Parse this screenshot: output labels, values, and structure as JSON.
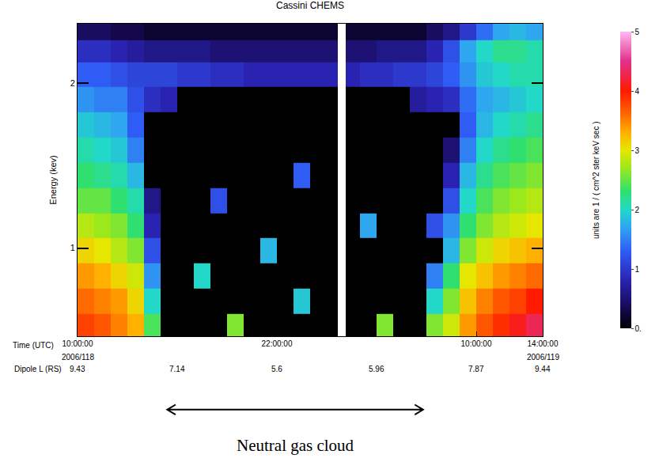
{
  "chart_data": {
    "type": "heatmap",
    "title": "Cassini CHEMS",
    "x_label": "Time (UTC)",
    "y_label": "Energy (kev)",
    "x": [
      10.5,
      11.5,
      12.5,
      13.5,
      14.5,
      15.5,
      16.5,
      17.5,
      18.5,
      19.5,
      20.5,
      21.5,
      22.5,
      23.5,
      24.5,
      25.5,
      25.8,
      26.5,
      27.5,
      28.5,
      29.5,
      30.5,
      31.5,
      32.5,
      33.5,
      34.5,
      35.5,
      36.5,
      37.5
    ],
    "y": [
      0.72,
      0.8,
      0.89,
      0.99,
      1.1,
      1.22,
      1.36,
      1.51,
      1.68,
      1.87,
      2.08,
      2.3,
      2.5
    ],
    "cells": [
      [
        3.8,
        3.7,
        3.5,
        3.3,
        2.4,
        0,
        0,
        0,
        0,
        2.6,
        0,
        0,
        0,
        0,
        0,
        0,
        null,
        0,
        0,
        2.6,
        0,
        0,
        2.6,
        2.9,
        3.4,
        3.7,
        3.9,
        4.1,
        4.3
      ],
      [
        3.6,
        3.5,
        3.4,
        3.1,
        2.0,
        0,
        0,
        0,
        0,
        0,
        0,
        0,
        0,
        1.9,
        0,
        0,
        null,
        0,
        0,
        0,
        0,
        0,
        2.0,
        2.6,
        3.2,
        3.5,
        3.7,
        3.8,
        4.0
      ],
      [
        3.4,
        3.3,
        3.1,
        2.9,
        1.6,
        0,
        0,
        2.0,
        0,
        0,
        0,
        0,
        0,
        0,
        0,
        0,
        null,
        0,
        0,
        0,
        0,
        0,
        1.5,
        2.3,
        3.0,
        3.2,
        3.4,
        3.5,
        3.6
      ],
      [
        3.1,
        3.0,
        2.8,
        2.6,
        1.2,
        0,
        0,
        0,
        0,
        0,
        0,
        1.8,
        0,
        0,
        0,
        0,
        null,
        0,
        0,
        0,
        0,
        0,
        0,
        1.8,
        2.6,
        2.9,
        3.1,
        3.2,
        3.3
      ],
      [
        2.8,
        2.7,
        2.6,
        2.3,
        0.8,
        0,
        0,
        0,
        0,
        0,
        0,
        0,
        0,
        0,
        0,
        0,
        null,
        0,
        1.7,
        0,
        0,
        0,
        1.2,
        1.6,
        2.3,
        2.6,
        2.8,
        2.9,
        3.0
      ],
      [
        2.5,
        2.5,
        2.3,
        2.1,
        0.6,
        0,
        0,
        0,
        1.2,
        0,
        0,
        0,
        0,
        0,
        0,
        0,
        null,
        0,
        0,
        0,
        0,
        0,
        0,
        1.2,
        2.0,
        2.4,
        2.6,
        2.7,
        2.8
      ],
      [
        2.3,
        2.2,
        2.1,
        1.8,
        0,
        0,
        0,
        0,
        0,
        0,
        0,
        0,
        0,
        1.3,
        0,
        0,
        null,
        0,
        0,
        0,
        0,
        0,
        0,
        0.8,
        1.8,
        2.2,
        2.4,
        2.5,
        2.6
      ],
      [
        2.1,
        2.0,
        1.9,
        1.5,
        0,
        0,
        0,
        0,
        0,
        0,
        0,
        0,
        0,
        0,
        0,
        0,
        null,
        0,
        0,
        0,
        0,
        0,
        0,
        0.5,
        1.5,
        2.0,
        2.2,
        2.3,
        2.4
      ],
      [
        1.9,
        1.8,
        1.7,
        1.3,
        0,
        0,
        0,
        0,
        0,
        0,
        0,
        0,
        0,
        0,
        0,
        0,
        null,
        0,
        0,
        0,
        0,
        0,
        0,
        0,
        1.3,
        1.8,
        2.0,
        2.1,
        2.2
      ],
      [
        1.6,
        1.5,
        1.5,
        1.2,
        0.9,
        0.8,
        0,
        0,
        0,
        0,
        0,
        0,
        0,
        0,
        0,
        0,
        null,
        0,
        0,
        0,
        0,
        0.7,
        0.8,
        0.9,
        1.4,
        1.7,
        1.8,
        1.9,
        2.0
      ],
      [
        1.3,
        1.3,
        1.2,
        1.1,
        1.1,
        1.1,
        1.0,
        1.0,
        0.9,
        0.9,
        0.8,
        0.8,
        0.8,
        0.8,
        0.8,
        0.8,
        null,
        0.8,
        0.9,
        0.9,
        1.0,
        1.0,
        1.1,
        1.3,
        1.6,
        1.9,
        2.0,
        2.1,
        2.1
      ],
      [
        0.9,
        0.9,
        0.8,
        0.7,
        0.6,
        0.6,
        0.6,
        0.6,
        0.5,
        0.5,
        0.5,
        0.5,
        0.5,
        0.5,
        0.5,
        0.5,
        null,
        0.5,
        0.5,
        0.6,
        0.6,
        0.6,
        0.8,
        1.2,
        1.7,
        2.0,
        2.2,
        2.2,
        2.1
      ],
      [
        0.4,
        0.4,
        0.3,
        0.3,
        0.2,
        0.2,
        0.2,
        0.2,
        0.2,
        0.2,
        0.2,
        0.2,
        0.2,
        0.2,
        0.2,
        0.2,
        null,
        0.2,
        0.2,
        0.2,
        0.2,
        0.2,
        0.4,
        0.6,
        1.0,
        1.4,
        1.7,
        1.8,
        1.7
      ]
    ],
    "log": "y",
    "grid": false,
    "xlim": [
      10,
      38
    ],
    "xticks": [
      {
        "value": 10,
        "label": "10:00:00"
      },
      {
        "value": 22,
        "label": "22:00:00"
      },
      {
        "value": 34,
        "label": "10:00:00"
      },
      {
        "value": 38,
        "label": "14:00:00"
      }
    ],
    "ylim": [
      0.69,
      2.57
    ],
    "yticks": [
      1,
      2
    ],
    "colorbar": {
      "label": "units are 1 / ( cm^2 ster keV sec )",
      "range": [
        0,
        5
      ],
      "ticks": [
        {
          "value": 0,
          "label": "0."
        },
        1,
        2,
        3,
        4,
        5
      ]
    },
    "dates": [
      {
        "x": 10,
        "label": "2006/118"
      },
      {
        "x": 38,
        "label": "2006/119"
      }
    ],
    "dipole_L": {
      "label": "Dipole L (RS)",
      "x": [
        10,
        16,
        22,
        28,
        34,
        38
      ],
      "values": [
        9.43,
        7.14,
        5.6,
        5.96,
        7.87,
        9.44
      ]
    },
    "span": {
      "label": "Neutral gas cloud",
      "x0": 15.4,
      "x1": 30.8
    }
  }
}
